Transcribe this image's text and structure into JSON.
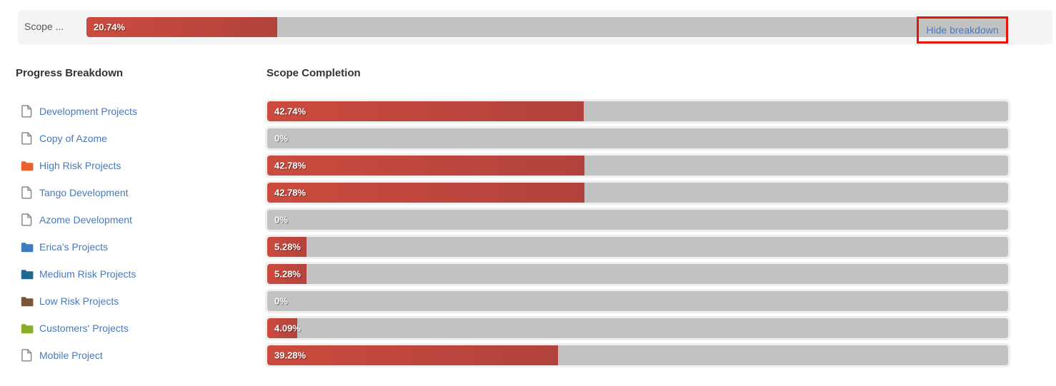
{
  "scope_bar": {
    "label": "Scope ...",
    "value_label": "20.74%",
    "percent": 20.74,
    "action_label": "Hide breakdown"
  },
  "headings": {
    "left": "Progress Breakdown",
    "right": "Scope Completion"
  },
  "projects": [
    {
      "name": "Development Projects",
      "icon": "page-icon",
      "icon_color": "#8a8a8a",
      "percent": 42.74,
      "value_label": "42.74%"
    },
    {
      "name": "Copy of Azome",
      "icon": "page-icon",
      "icon_color": "#8a8a8a",
      "percent": 0,
      "value_label": "0%"
    },
    {
      "name": "High Risk Projects",
      "icon": "folder-icon",
      "icon_color": "#E9622E",
      "percent": 42.78,
      "value_label": "42.78%"
    },
    {
      "name": "Tango Development",
      "icon": "page-icon",
      "icon_color": "#8a8a8a",
      "percent": 42.78,
      "value_label": "42.78%"
    },
    {
      "name": "Azome Development",
      "icon": "page-icon",
      "icon_color": "#8a8a8a",
      "percent": 0,
      "value_label": "0%"
    },
    {
      "name": "Erica's Projects",
      "icon": "folder-icon",
      "icon_color": "#3E7CC1",
      "percent": 5.28,
      "value_label": "5.28%"
    },
    {
      "name": "Medium Risk Projects",
      "icon": "folder-icon",
      "icon_color": "#1F6991",
      "percent": 5.28,
      "value_label": "5.28%"
    },
    {
      "name": "Low Risk Projects",
      "icon": "folder-icon",
      "icon_color": "#7B5636",
      "percent": 0,
      "value_label": "0%"
    },
    {
      "name": "Customers' Projects",
      "icon": "folder-icon",
      "icon_color": "#8AAD27",
      "percent": 4.09,
      "value_label": "4.09%"
    },
    {
      "name": "Mobile Project",
      "icon": "page-icon",
      "icon_color": "#8a8a8a",
      "percent": 39.28,
      "value_label": "39.28%"
    }
  ],
  "chart_data": {
    "type": "bar",
    "orientation": "horizontal",
    "title": "Scope Completion",
    "categories": [
      "Development Projects",
      "Copy of Azome",
      "High Risk Projects",
      "Tango Development",
      "Azome Development",
      "Erica's Projects",
      "Medium Risk Projects",
      "Low Risk Projects",
      "Customers' Projects",
      "Mobile Project"
    ],
    "values": [
      42.74,
      0,
      42.78,
      42.78,
      0,
      5.28,
      5.28,
      0,
      4.09,
      39.28
    ],
    "value_labels": [
      "42.74%",
      "0%",
      "42.78%",
      "42.78%",
      "0%",
      "5.28%",
      "5.28%",
      "0%",
      "4.09%",
      "39.28%"
    ],
    "summary": {
      "label": "Scope ...",
      "value": 20.74,
      "value_label": "20.74%"
    },
    "xlim": [
      0,
      100
    ],
    "grid": false,
    "legend": false
  },
  "colors": {
    "bar_fill_start": "#CB4B3E",
    "bar_fill_end": "#B2433C",
    "bar_track": "#C2C2C2",
    "bar_frame": "#EFEFEF",
    "panel_bg": "#F4F4F4",
    "link_blue": "#4A79B8",
    "annotation_red": "#E81507",
    "heading_text": "#333333",
    "scope_label_text": "#55595E"
  }
}
